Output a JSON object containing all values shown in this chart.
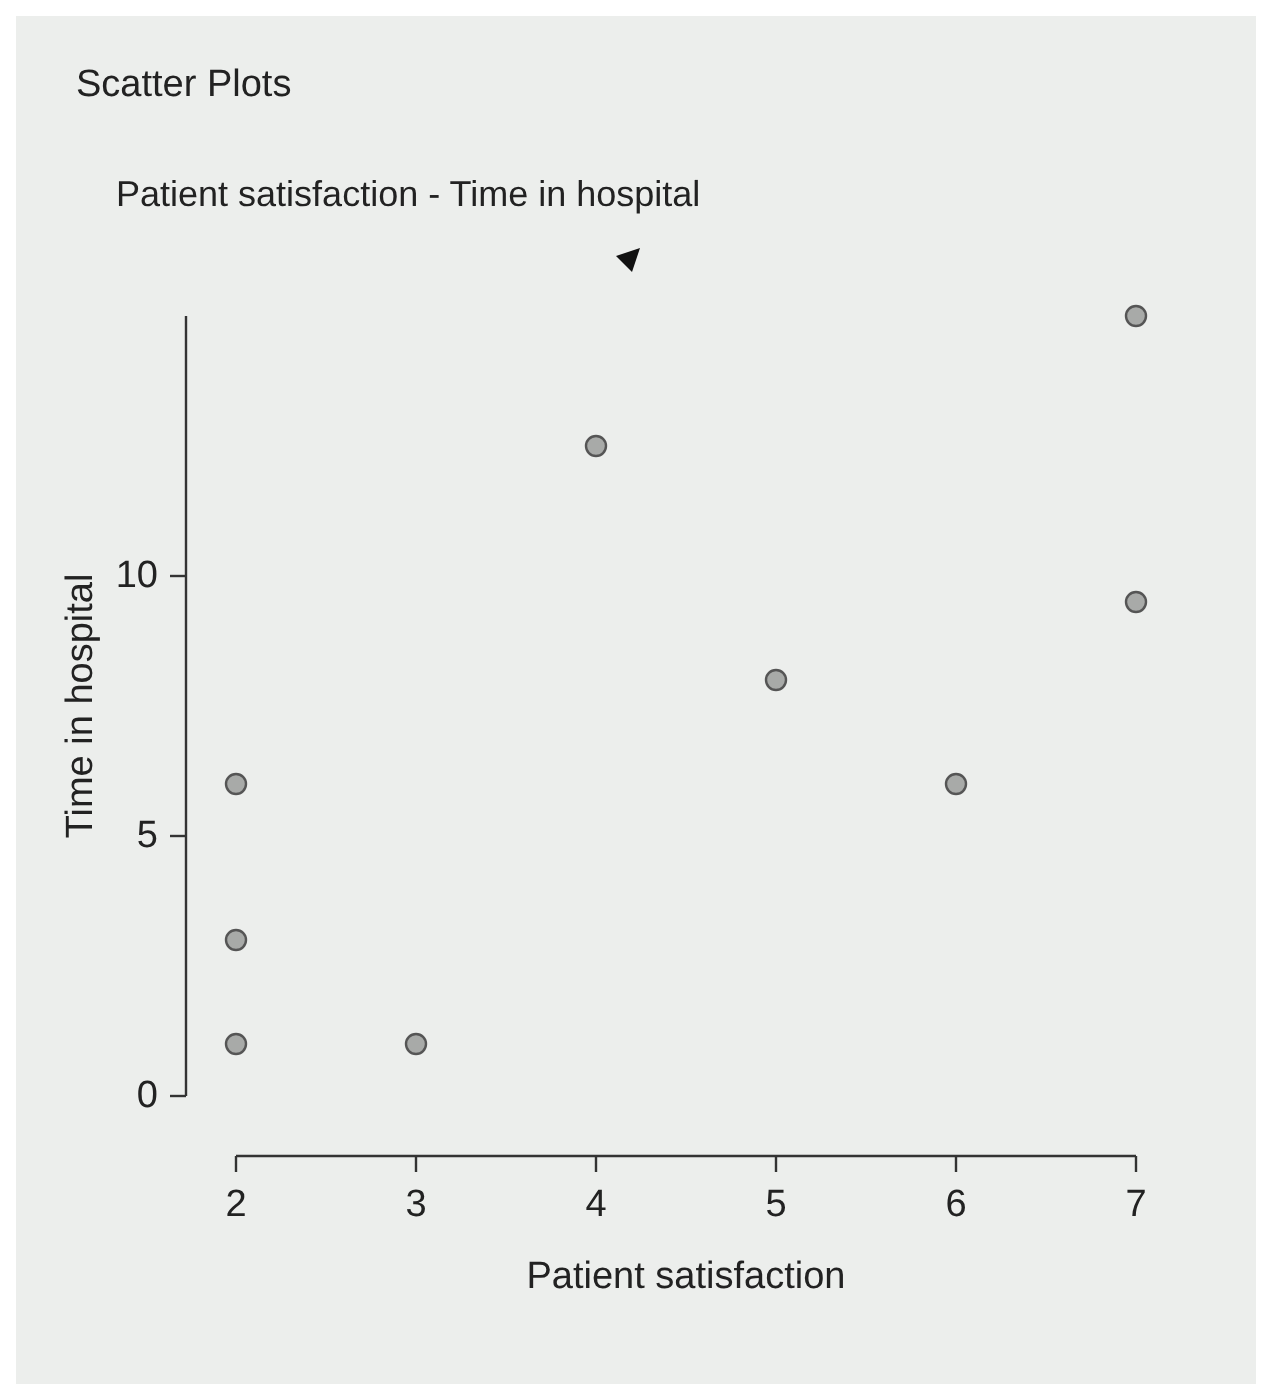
{
  "chart_data": {
    "type": "scatter",
    "title": "Scatter Plots",
    "subtitle": "Patient satisfaction - Time in hospital",
    "xlabel": "Patient satisfaction",
    "ylabel": "Time in hospital",
    "x": [
      2,
      2,
      2,
      3,
      4,
      5,
      6,
      7,
      7
    ],
    "values": [
      1,
      3,
      6,
      1,
      12.5,
      8,
      6,
      9.5,
      15
    ],
    "color": "#a8aaa8",
    "marker": "circle",
    "xlim": [
      2,
      7
    ],
    "xticks": [
      2,
      3,
      4,
      5,
      6,
      7
    ],
    "ylim": [
      0,
      15
    ],
    "yticks": [
      0,
      5,
      10
    ]
  }
}
